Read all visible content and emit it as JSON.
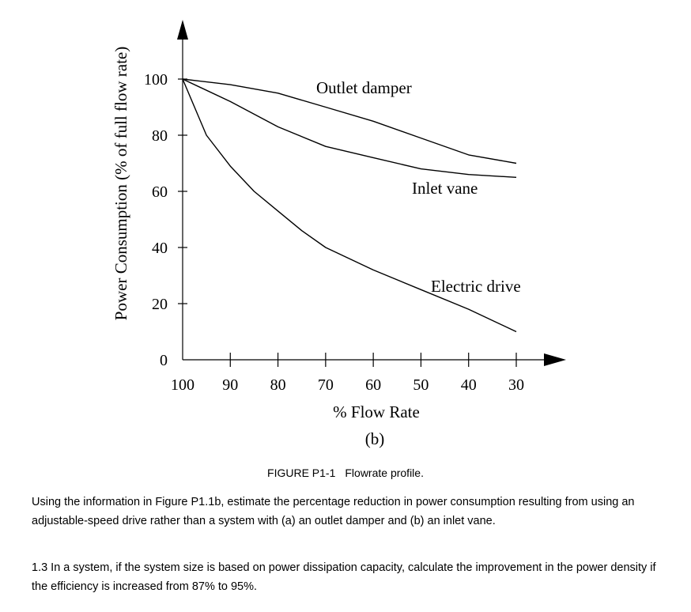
{
  "chart_data": {
    "type": "line",
    "ylabel": "Power Consumption (% of full flow rate)",
    "xlabel": "% Flow Rate",
    "sublabel": "(b)",
    "x_ticks": [
      100,
      90,
      80,
      70,
      60,
      50,
      40,
      30
    ],
    "y_ticks": [
      0,
      20,
      40,
      60,
      80,
      100
    ],
    "xlim": [
      100,
      30
    ],
    "ylim": [
      0,
      100
    ],
    "x_reversed": true,
    "grid": false,
    "series": [
      {
        "name": "Outlet damper",
        "x": [
          100,
          90,
          80,
          70,
          60,
          50,
          40,
          30
        ],
        "y": [
          100,
          98,
          95,
          90,
          85,
          79,
          73,
          70
        ]
      },
      {
        "name": "Inlet vane",
        "x": [
          100,
          90,
          80,
          70,
          60,
          50,
          40,
          30
        ],
        "y": [
          100,
          92,
          83,
          76,
          72,
          68,
          66,
          65
        ]
      },
      {
        "name": "Electric drive",
        "x": [
          100,
          95,
          90,
          85,
          80,
          75,
          70,
          60,
          50,
          40,
          30
        ],
        "y": [
          100,
          80,
          69,
          60,
          53,
          46,
          40,
          32,
          25,
          18,
          10
        ]
      }
    ]
  },
  "caption": {
    "number": "FIGURE P1-1",
    "text": "Flowrate profile."
  },
  "question_text": "Using the information in Figure P1.1b, estimate the percentage reduction in power consumption resulting from using an adjustable-speed drive rather than a system with (a) an outlet damper and (b) an inlet vane.",
  "problem_1_3": "1.3 In a system, if the system size is based on power dissipation capacity, calculate the improvement in the power density if the efficiency is increased from 87% to 95%."
}
